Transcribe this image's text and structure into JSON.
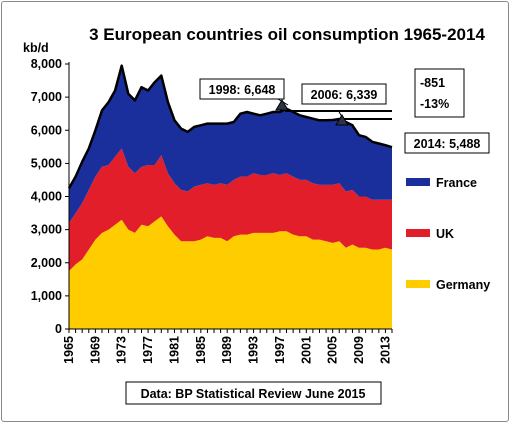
{
  "chart_data": {
    "type": "area",
    "stacked": true,
    "title": "3 European countries oil consumption 1965-2014",
    "ylabel": "kb/d",
    "ylim": [
      0,
      8000
    ],
    "yticks": [
      "0",
      "1,000",
      "2,000",
      "3,000",
      "4,000",
      "5,000",
      "6,000",
      "7,000",
      "8,000"
    ],
    "xtick_labels": [
      "1965",
      "1969",
      "1973",
      "1977",
      "1981",
      "1985",
      "1989",
      "1993",
      "1997",
      "2001",
      "2005",
      "2009",
      "2013"
    ],
    "x": [
      1965,
      1966,
      1967,
      1968,
      1969,
      1970,
      1971,
      1972,
      1973,
      1974,
      1975,
      1976,
      1977,
      1978,
      1979,
      1980,
      1981,
      1982,
      1983,
      1984,
      1985,
      1986,
      1987,
      1988,
      1989,
      1990,
      1991,
      1992,
      1993,
      1994,
      1995,
      1996,
      1997,
      1998,
      1999,
      2000,
      2001,
      2002,
      2003,
      2004,
      2005,
      2006,
      2007,
      2008,
      2009,
      2010,
      2011,
      2012,
      2013,
      2014
    ],
    "series": [
      {
        "name": "Germany",
        "color": "#FFCC00",
        "values": [
          1750,
          1950,
          2100,
          2400,
          2700,
          2900,
          3000,
          3150,
          3300,
          3000,
          2900,
          3150,
          3100,
          3250,
          3400,
          3100,
          2850,
          2650,
          2650,
          2650,
          2700,
          2800,
          2750,
          2750,
          2650,
          2800,
          2850,
          2850,
          2900,
          2900,
          2900,
          2900,
          2950,
          2950,
          2850,
          2800,
          2800,
          2700,
          2700,
          2650,
          2600,
          2650,
          2450,
          2550,
          2450,
          2450,
          2400,
          2400,
          2450,
          2400
        ]
      },
      {
        "name": "UK",
        "color": "#E31E2B",
        "values": [
          1450,
          1550,
          1700,
          1800,
          1900,
          2000,
          1950,
          2050,
          2150,
          1900,
          1800,
          1750,
          1850,
          1700,
          1850,
          1600,
          1550,
          1550,
          1500,
          1650,
          1650,
          1600,
          1600,
          1650,
          1700,
          1700,
          1750,
          1750,
          1800,
          1750,
          1750,
          1800,
          1700,
          1750,
          1750,
          1700,
          1700,
          1700,
          1650,
          1700,
          1750,
          1750,
          1700,
          1650,
          1550,
          1550,
          1500,
          1500,
          1450,
          1500
        ]
      },
      {
        "name": "France",
        "color": "#1A2F9C",
        "values": [
          1050,
          1100,
          1250,
          1250,
          1400,
          1700,
          1900,
          2000,
          2500,
          2200,
          2200,
          2400,
          2250,
          2500,
          2400,
          2150,
          1900,
          1850,
          1800,
          1800,
          1800,
          1800,
          1850,
          1800,
          1850,
          1750,
          1900,
          1950,
          1800,
          1800,
          1850,
          1850,
          1900,
          1948,
          1950,
          1950,
          1900,
          1950,
          1950,
          1950,
          1960,
          1939,
          2100,
          1950,
          1850,
          1800,
          1750,
          1700,
          1650,
          1588
        ]
      }
    ],
    "annotations": [
      "1998: 6,648",
      "2006: 6,339",
      "-851",
      "-13%",
      "2014: 5,488"
    ],
    "source": "Data: BP Statistical Review June 2015",
    "grid": false,
    "legend_position": "right"
  }
}
